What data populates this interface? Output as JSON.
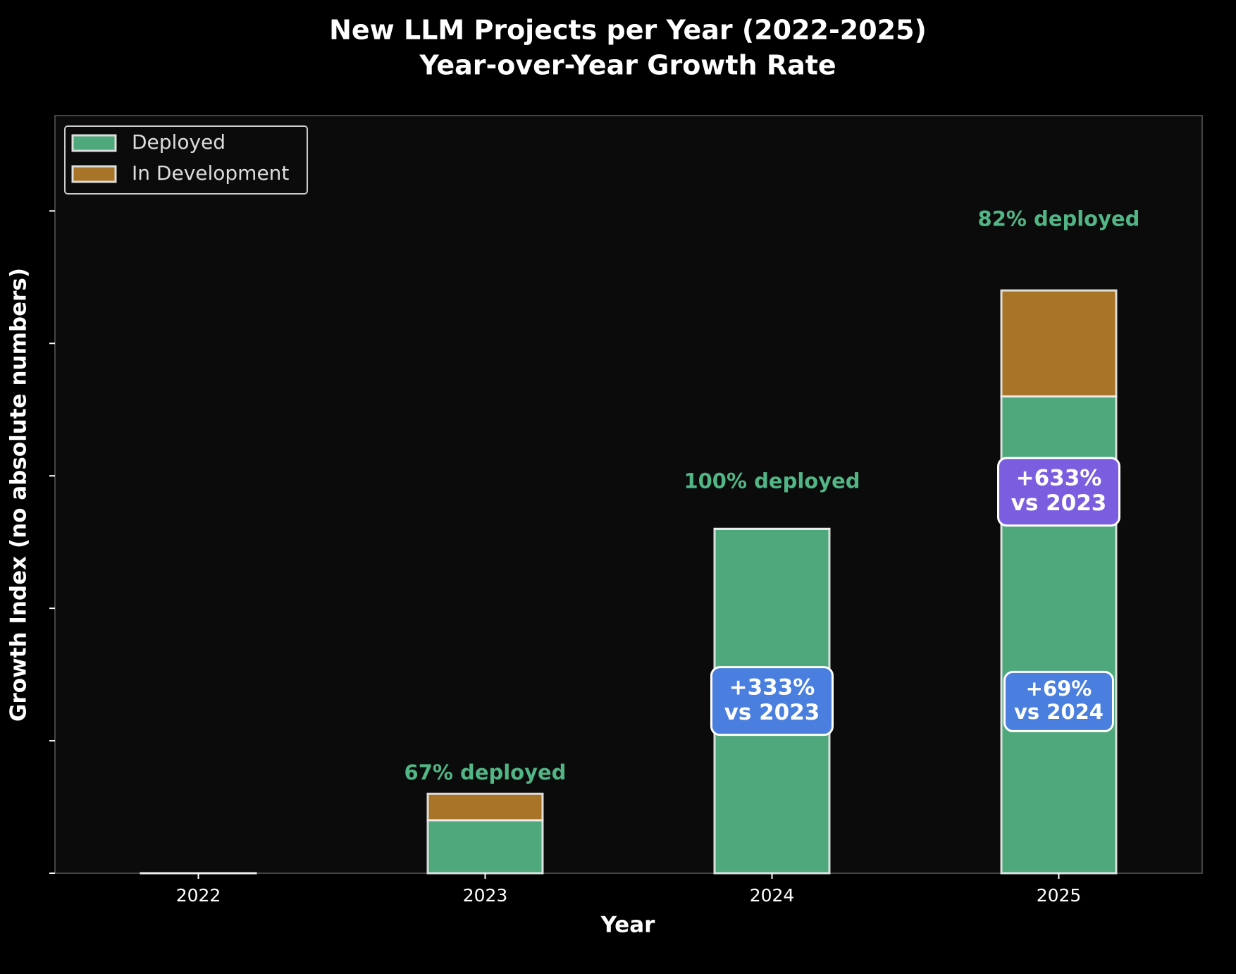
{
  "chart_data": {
    "type": "stacked_bar",
    "title": "New LLM Projects per Year (2022-2025)",
    "subtitle": "Year-over-Year Growth Rate",
    "x_label": "Year",
    "y_label": "Growth Index (no absolute numbers)",
    "categories": [
      "2022",
      "2023",
      "2024",
      "2025"
    ],
    "series": [
      {
        "name": "Deployed",
        "color": "#4fa77c",
        "values": [
          0,
          2,
          13,
          18
        ]
      },
      {
        "name": "In Development",
        "color": "#a87528",
        "values": [
          0,
          1,
          0,
          4
        ]
      }
    ],
    "ylim": [
      0,
      28.6
    ],
    "yticks": [
      0,
      5,
      10,
      15,
      20,
      25
    ],
    "legend": "upper left",
    "deployed_labels": [
      null,
      "67% deployed",
      "100% deployed",
      "82% deployed"
    ],
    "deployed_label_color": "#52b585",
    "growth_labels": [
      {
        "category": "2024",
        "lines": [
          "+333%",
          "vs 2023"
        ],
        "color": "#4a7fdf"
      },
      {
        "category": "2025",
        "lines": [
          "+69%",
          "vs 2024"
        ],
        "color": "#4a7fdf"
      },
      {
        "category": "2025",
        "lines": [
          "+633%",
          "vs 2023"
        ],
        "color": "#7b5ee0"
      }
    ]
  }
}
